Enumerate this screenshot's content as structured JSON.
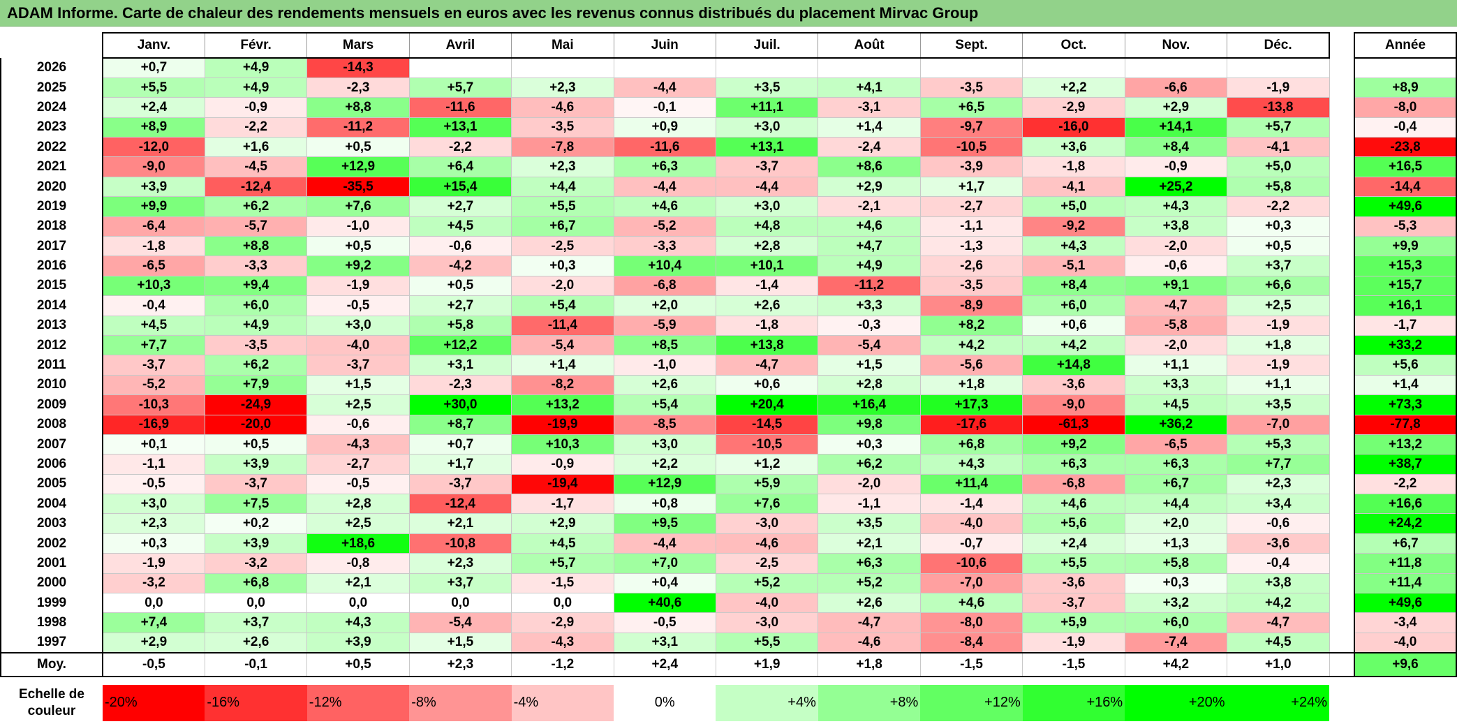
{
  "title": "ADAM Informe. Carte de chaleur des rendements mensuels en euros avec les revenus connus distribués du placement Mirvac Group",
  "colors": {
    "title_bg": "#92d28a",
    "neg_strong": "#ff0000",
    "pos_strong": "#00ff00",
    "zero": "#ffffff"
  },
  "chart_data": {
    "type": "heatmap",
    "title": "ADAM Informe. Carte de chaleur des rendements mensuels en euros avec les revenus connus distribués du placement Mirvac Group",
    "months": [
      "Janv.",
      "Févr.",
      "Mars",
      "Avril",
      "Mai",
      "Juin",
      "Juil.",
      "Août",
      "Sept.",
      "Oct.",
      "Nov.",
      "Déc."
    ],
    "annual_label": "Année",
    "avg_label": "Moy.",
    "rows": [
      {
        "year": "2026",
        "months": [
          "+0,7",
          "+4,9",
          "-14,3",
          "",
          "",
          "",
          "",
          "",
          "",
          "",
          "",
          ""
        ],
        "annual": ""
      },
      {
        "year": "2025",
        "months": [
          "+5,5",
          "+4,9",
          "-2,3",
          "+5,7",
          "+2,3",
          "-4,4",
          "+3,5",
          "+4,1",
          "-3,5",
          "+2,2",
          "-6,6",
          "-1,9"
        ],
        "annual": "+8,9"
      },
      {
        "year": "2024",
        "months": [
          "+2,4",
          "-0,9",
          "+8,8",
          "-11,6",
          "-4,6",
          "-0,1",
          "+11,1",
          "-3,1",
          "+6,5",
          "-2,9",
          "+2,9",
          "-13,8"
        ],
        "annual": "-8,0"
      },
      {
        "year": "2023",
        "months": [
          "+8,9",
          "-2,2",
          "-11,2",
          "+13,1",
          "-3,5",
          "+0,9",
          "+3,0",
          "+1,4",
          "-9,7",
          "-16,0",
          "+14,1",
          "+5,7"
        ],
        "annual": "-0,4"
      },
      {
        "year": "2022",
        "months": [
          "-12,0",
          "+1,6",
          "+0,5",
          "-2,2",
          "-7,8",
          "-11,6",
          "+13,1",
          "-2,4",
          "-10,5",
          "+3,6",
          "+8,4",
          "-4,1"
        ],
        "annual": "-23,8"
      },
      {
        "year": "2021",
        "months": [
          "-9,0",
          "-4,5",
          "+12,9",
          "+6,4",
          "+2,3",
          "+6,3",
          "-3,7",
          "+8,6",
          "-3,9",
          "-1,8",
          "-0,9",
          "+5,0"
        ],
        "annual": "+16,5"
      },
      {
        "year": "2020",
        "months": [
          "+3,9",
          "-12,4",
          "-35,5",
          "+15,4",
          "+4,4",
          "-4,4",
          "-4,4",
          "+2,9",
          "+1,7",
          "-4,1",
          "+25,2",
          "+5,8"
        ],
        "annual": "-14,4"
      },
      {
        "year": "2019",
        "months": [
          "+9,9",
          "+6,2",
          "+7,6",
          "+2,7",
          "+5,5",
          "+4,6",
          "+3,0",
          "-2,1",
          "-2,7",
          "+5,0",
          "+4,3",
          "-2,2"
        ],
        "annual": "+49,6"
      },
      {
        "year": "2018",
        "months": [
          "-6,4",
          "-5,7",
          "-1,0",
          "+4,5",
          "+6,7",
          "-5,2",
          "+4,8",
          "+4,6",
          "-1,1",
          "-9,2",
          "+3,8",
          "+0,3"
        ],
        "annual": "-5,3"
      },
      {
        "year": "2017",
        "months": [
          "-1,8",
          "+8,8",
          "+0,5",
          "-0,6",
          "-2,5",
          "-3,3",
          "+2,8",
          "+4,7",
          "-1,3",
          "+4,3",
          "-2,0",
          "+0,5"
        ],
        "annual": "+9,9"
      },
      {
        "year": "2016",
        "months": [
          "-6,5",
          "-3,3",
          "+9,2",
          "-4,2",
          "+0,3",
          "+10,4",
          "+10,1",
          "+4,9",
          "-2,6",
          "-5,1",
          "-0,6",
          "+3,7"
        ],
        "annual": "+15,3"
      },
      {
        "year": "2015",
        "months": [
          "+10,3",
          "+9,4",
          "-1,9",
          "+0,5",
          "-2,0",
          "-6,8",
          "-1,4",
          "-11,2",
          "-3,5",
          "+8,4",
          "+9,1",
          "+6,6"
        ],
        "annual": "+15,7"
      },
      {
        "year": "2014",
        "months": [
          "-0,4",
          "+6,0",
          "-0,5",
          "+2,7",
          "+5,4",
          "+2,0",
          "+2,6",
          "+3,3",
          "-8,9",
          "+6,0",
          "-4,7",
          "+2,5"
        ],
        "annual": "+16,1"
      },
      {
        "year": "2013",
        "months": [
          "+4,5",
          "+4,9",
          "+3,0",
          "+5,8",
          "-11,4",
          "-5,9",
          "-1,8",
          "-0,3",
          "+8,2",
          "+0,6",
          "-5,8",
          "-1,9"
        ],
        "annual": "-1,7"
      },
      {
        "year": "2012",
        "months": [
          "+7,7",
          "-3,5",
          "-4,0",
          "+12,2",
          "-5,4",
          "+8,5",
          "+13,8",
          "-5,4",
          "+4,2",
          "+4,2",
          "-2,0",
          "+1,8"
        ],
        "annual": "+33,2"
      },
      {
        "year": "2011",
        "months": [
          "-3,7",
          "+6,2",
          "-3,7",
          "+3,1",
          "+1,4",
          "-1,0",
          "-4,7",
          "+1,5",
          "-5,6",
          "+14,8",
          "+1,1",
          "-1,9"
        ],
        "annual": "+5,6"
      },
      {
        "year": "2010",
        "months": [
          "-5,2",
          "+7,9",
          "+1,5",
          "-2,3",
          "-8,2",
          "+2,6",
          "+0,6",
          "+2,8",
          "+1,8",
          "-3,6",
          "+3,3",
          "+1,1"
        ],
        "annual": "+1,4"
      },
      {
        "year": "2009",
        "months": [
          "-10,3",
          "-24,9",
          "+2,5",
          "+30,0",
          "+13,2",
          "+5,4",
          "+20,4",
          "+16,4",
          "+17,3",
          "-9,0",
          "+4,5",
          "+3,5"
        ],
        "annual": "+73,3"
      },
      {
        "year": "2008",
        "months": [
          "-16,9",
          "-20,0",
          "-0,6",
          "+8,7",
          "-19,9",
          "-8,5",
          "-14,5",
          "+9,8",
          "-17,6",
          "-61,3",
          "+36,2",
          "-7,0"
        ],
        "annual": "-77,8"
      },
      {
        "year": "2007",
        "months": [
          "+0,1",
          "+0,5",
          "-4,3",
          "+0,7",
          "+10,3",
          "+3,0",
          "-10,5",
          "+0,3",
          "+6,8",
          "+9,2",
          "-6,5",
          "+5,3"
        ],
        "annual": "+13,2"
      },
      {
        "year": "2006",
        "months": [
          "-1,1",
          "+3,9",
          "-2,7",
          "+1,7",
          "-0,9",
          "+2,2",
          "+1,2",
          "+6,2",
          "+4,3",
          "+6,3",
          "+6,3",
          "+7,7"
        ],
        "annual": "+38,7"
      },
      {
        "year": "2005",
        "months": [
          "-0,5",
          "-3,7",
          "-0,5",
          "-3,7",
          "-19,4",
          "+12,9",
          "+5,9",
          "-2,0",
          "+11,4",
          "-6,8",
          "+6,7",
          "+2,3"
        ],
        "annual": "-2,2"
      },
      {
        "year": "2004",
        "months": [
          "+3,0",
          "+7,5",
          "+2,8",
          "-12,4",
          "-1,7",
          "+0,8",
          "+7,6",
          "-1,1",
          "-1,4",
          "+4,6",
          "+4,4",
          "+3,4"
        ],
        "annual": "+16,6"
      },
      {
        "year": "2003",
        "months": [
          "+2,3",
          "+0,2",
          "+2,5",
          "+2,1",
          "+2,9",
          "+9,5",
          "-3,0",
          "+3,5",
          "-4,0",
          "+5,6",
          "+2,0",
          "-0,6"
        ],
        "annual": "+24,2"
      },
      {
        "year": "2002",
        "months": [
          "+0,3",
          "+3,9",
          "+18,6",
          "-10,8",
          "+4,5",
          "-4,4",
          "-4,6",
          "+2,1",
          "-0,7",
          "+2,4",
          "+1,3",
          "-3,6"
        ],
        "annual": "+6,7"
      },
      {
        "year": "2001",
        "months": [
          "-1,9",
          "-3,2",
          "-0,8",
          "+2,3",
          "+5,7",
          "+7,0",
          "-2,5",
          "+6,3",
          "-10,6",
          "+5,5",
          "+5,8",
          "-0,4"
        ],
        "annual": "+11,8"
      },
      {
        "year": "2000",
        "months": [
          "-3,2",
          "+6,8",
          "+2,1",
          "+3,7",
          "-1,5",
          "+0,4",
          "+5,2",
          "+5,2",
          "-7,0",
          "-3,6",
          "+0,3",
          "+3,8"
        ],
        "annual": "+11,4"
      },
      {
        "year": "1999",
        "months": [
          "0,0",
          "0,0",
          "0,0",
          "0,0",
          "0,0",
          "+40,6",
          "-4,0",
          "+2,6",
          "+4,6",
          "-3,7",
          "+3,2",
          "+4,2"
        ],
        "annual": "+49,6"
      },
      {
        "year": "1998",
        "months": [
          "+7,4",
          "+3,7",
          "+4,3",
          "-5,4",
          "-2,9",
          "-0,5",
          "-3,0",
          "-4,7",
          "-8,0",
          "+5,9",
          "+6,0",
          "-4,7"
        ],
        "annual": "-3,4"
      },
      {
        "year": "1997",
        "months": [
          "+2,9",
          "+2,6",
          "+3,9",
          "+1,5",
          "-4,3",
          "+3,1",
          "+5,5",
          "-4,6",
          "-8,4",
          "-1,9",
          "-7,4",
          "+4,5"
        ],
        "annual": "-4,0"
      }
    ],
    "average": {
      "months": [
        "-0,5",
        "-0,1",
        "+0,5",
        "+2,3",
        "-1,2",
        "+2,4",
        "+1,9",
        "+1,8",
        "-1,5",
        "-1,5",
        "+4,2",
        "+1,0"
      ],
      "annual": "+9,6"
    },
    "scale": {
      "label": "Echelle de couleur",
      "steps": [
        {
          "label": "-20%",
          "value": -20
        },
        {
          "label": "-16%",
          "value": -16
        },
        {
          "label": "-12%",
          "value": -12
        },
        {
          "label": "-8%",
          "value": -8
        },
        {
          "label": "-4%",
          "value": -4
        },
        {
          "label": "0%",
          "value": 0
        },
        {
          "label": "+4%",
          "value": 4
        },
        {
          "label": "+8%",
          "value": 8
        },
        {
          "label": "+12%",
          "value": 12
        },
        {
          "label": "+16%",
          "value": 16
        },
        {
          "label": "+20%",
          "value": 20
        },
        {
          "label": "+24%",
          "value": 24
        }
      ]
    }
  }
}
